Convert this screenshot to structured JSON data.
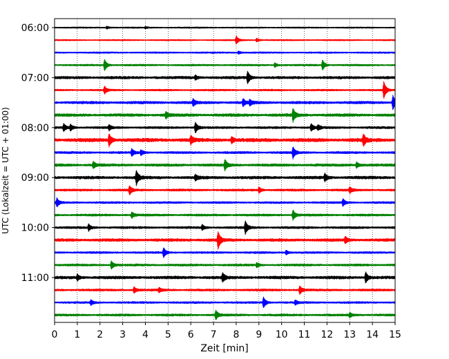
{
  "chart_data": {
    "type": "line",
    "xlabel": "Zeit  [min]",
    "ylabel": "UTC (Lokalzeit = UTC + 01:00)",
    "xlim": [
      0,
      15
    ],
    "x_ticks": [
      "0",
      "1",
      "2",
      "3",
      "4",
      "5",
      "6",
      "7",
      "8",
      "9",
      "10",
      "11",
      "12",
      "13",
      "14",
      "15"
    ],
    "y_ticks": [
      "06:00",
      "07:00",
      "08:00",
      "09:00",
      "10:00",
      "11:00"
    ],
    "grid": "vertical dotted",
    "trace_interval_minutes": 15,
    "trace_count": 24,
    "trace_color_cycle": [
      "#000000",
      "#ff0000",
      "#0000ff",
      "#008000"
    ],
    "traces": [
      {
        "start": "06:00",
        "color": "#000000",
        "amplitude": 0.06,
        "events": [
          [
            2.3,
            0.18
          ],
          [
            4.0,
            0.12
          ]
        ]
      },
      {
        "start": "06:15",
        "color": "#ff0000",
        "amplitude": 0.06,
        "events": [
          [
            8.0,
            0.55
          ],
          [
            8.9,
            0.25
          ]
        ]
      },
      {
        "start": "06:30",
        "color": "#0000ff",
        "amplitude": 0.07,
        "events": [
          [
            8.1,
            0.2
          ]
        ]
      },
      {
        "start": "06:45",
        "color": "#008000",
        "amplitude": 0.08,
        "events": [
          [
            2.2,
            0.8
          ],
          [
            9.7,
            0.3
          ],
          [
            11.8,
            0.7
          ]
        ]
      },
      {
        "start": "07:00",
        "color": "#000000",
        "amplitude": 0.12,
        "events": [
          [
            8.5,
            0.85
          ],
          [
            6.2,
            0.3
          ]
        ]
      },
      {
        "start": "07:15",
        "color": "#ff0000",
        "amplitude": 0.08,
        "events": [
          [
            2.2,
            0.5
          ],
          [
            14.5,
            1.2
          ]
        ]
      },
      {
        "start": "07:30",
        "color": "#0000ff",
        "amplitude": 0.12,
        "events": [
          [
            6.1,
            0.45
          ],
          [
            8.3,
            0.5
          ],
          [
            8.6,
            0.4
          ],
          [
            14.9,
            1.0
          ]
        ]
      },
      {
        "start": "07:45",
        "color": "#008000",
        "amplitude": 0.13,
        "events": [
          [
            4.9,
            0.45
          ],
          [
            10.5,
            0.9
          ]
        ]
      },
      {
        "start": "08:00",
        "color": "#000000",
        "amplitude": 0.1,
        "events": [
          [
            0.4,
            0.5
          ],
          [
            0.7,
            0.45
          ],
          [
            2.4,
            0.35
          ],
          [
            6.2,
            0.75
          ],
          [
            11.3,
            0.5
          ],
          [
            11.6,
            0.35
          ]
        ]
      },
      {
        "start": "08:15",
        "color": "#ff0000",
        "amplitude": 0.16,
        "events": [
          [
            2.4,
            0.9
          ],
          [
            6.0,
            0.55
          ],
          [
            7.8,
            0.4
          ],
          [
            13.6,
            0.8
          ]
        ]
      },
      {
        "start": "08:30",
        "color": "#0000ff",
        "amplitude": 0.1,
        "events": [
          [
            3.4,
            0.5
          ],
          [
            3.8,
            0.35
          ],
          [
            10.5,
            0.8
          ]
        ]
      },
      {
        "start": "08:45",
        "color": "#008000",
        "amplitude": 0.12,
        "events": [
          [
            1.7,
            0.45
          ],
          [
            7.5,
            0.75
          ],
          [
            13.3,
            0.4
          ]
        ]
      },
      {
        "start": "09:00",
        "color": "#000000",
        "amplitude": 0.13,
        "events": [
          [
            3.6,
            1.0
          ],
          [
            6.2,
            0.35
          ],
          [
            11.9,
            0.5
          ]
        ]
      },
      {
        "start": "09:15",
        "color": "#ff0000",
        "amplitude": 0.1,
        "events": [
          [
            3.3,
            0.6
          ],
          [
            9.0,
            0.4
          ],
          [
            13.0,
            0.4
          ]
        ]
      },
      {
        "start": "09:30",
        "color": "#0000ff",
        "amplitude": 0.09,
        "events": [
          [
            0.1,
            0.6
          ],
          [
            12.7,
            0.5
          ]
        ]
      },
      {
        "start": "09:45",
        "color": "#008000",
        "amplitude": 0.1,
        "events": [
          [
            3.4,
            0.4
          ],
          [
            10.5,
            0.7
          ]
        ]
      },
      {
        "start": "10:00",
        "color": "#000000",
        "amplitude": 0.1,
        "events": [
          [
            1.5,
            0.45
          ],
          [
            6.5,
            0.35
          ],
          [
            8.4,
            0.9
          ]
        ]
      },
      {
        "start": "10:15",
        "color": "#ff0000",
        "amplitude": 0.13,
        "events": [
          [
            7.2,
            1.2
          ],
          [
            12.8,
            0.45
          ]
        ]
      },
      {
        "start": "10:30",
        "color": "#0000ff",
        "amplitude": 0.09,
        "events": [
          [
            4.8,
            0.65
          ],
          [
            10.2,
            0.3
          ]
        ]
      },
      {
        "start": "10:45",
        "color": "#008000",
        "amplitude": 0.1,
        "events": [
          [
            2.5,
            0.55
          ],
          [
            8.9,
            0.3
          ]
        ]
      },
      {
        "start": "11:00",
        "color": "#000000",
        "amplitude": 0.13,
        "events": [
          [
            1.0,
            0.4
          ],
          [
            7.4,
            0.6
          ],
          [
            13.7,
            0.75
          ]
        ]
      },
      {
        "start": "11:15",
        "color": "#ff0000",
        "amplitude": 0.1,
        "events": [
          [
            3.5,
            0.4
          ],
          [
            4.6,
            0.3
          ],
          [
            10.8,
            0.55
          ]
        ]
      },
      {
        "start": "11:30",
        "color": "#0000ff",
        "amplitude": 0.09,
        "events": [
          [
            1.6,
            0.35
          ],
          [
            9.2,
            0.75
          ],
          [
            10.6,
            0.3
          ]
        ]
      },
      {
        "start": "11:45",
        "color": "#008000",
        "amplitude": 0.1,
        "events": [
          [
            7.1,
            0.65
          ],
          [
            13.0,
            0.3
          ]
        ]
      }
    ]
  }
}
